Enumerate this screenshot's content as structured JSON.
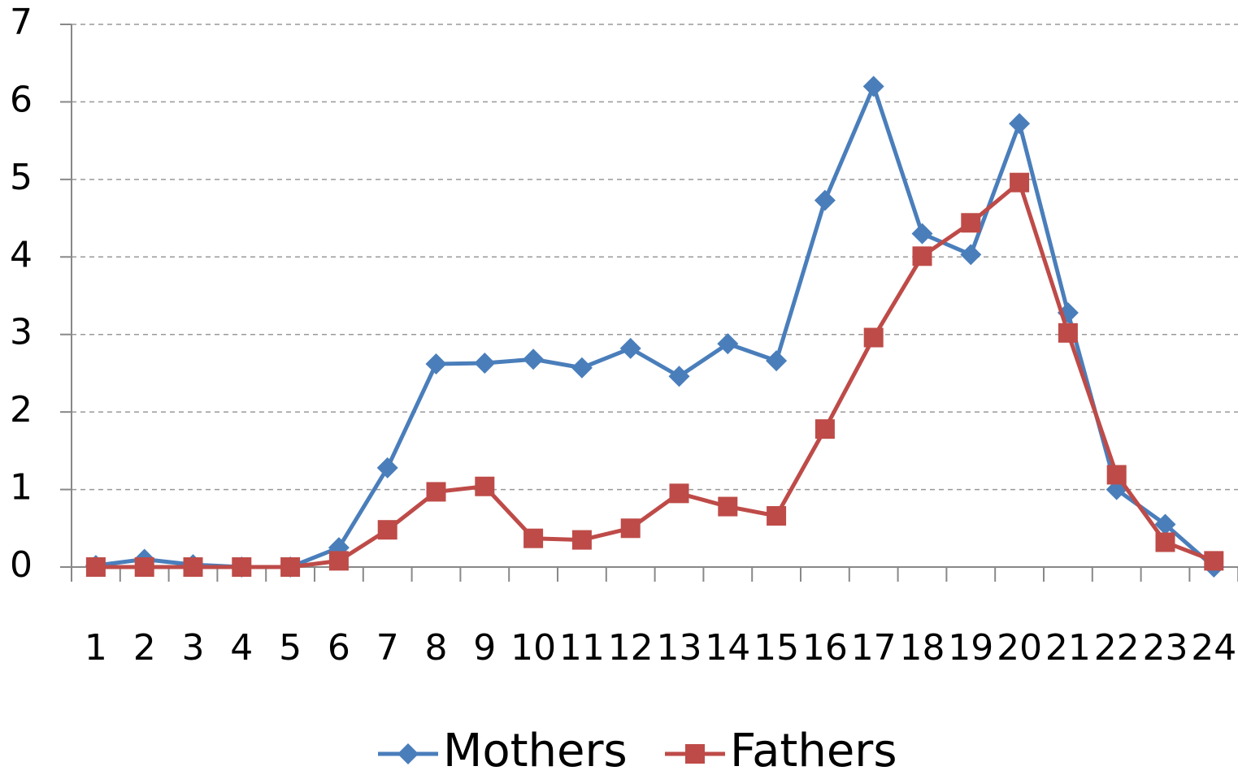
{
  "chart_data": {
    "type": "line",
    "categories": [
      "1",
      "2",
      "3",
      "4",
      "5",
      "6",
      "7",
      "8",
      "9",
      "10",
      "11",
      "12",
      "13",
      "14",
      "15",
      "16",
      "17",
      "18",
      "19",
      "20",
      "21",
      "22",
      "23",
      "24"
    ],
    "series": [
      {
        "name": "Mothers",
        "color": "#4a7ebb",
        "marker": "diamond",
        "values": [
          0.02,
          0.1,
          0.03,
          0,
          0,
          0.25,
          1.28,
          2.62,
          2.63,
          2.68,
          2.57,
          2.82,
          2.46,
          2.88,
          2.66,
          4.73,
          6.2,
          4.3,
          4.03,
          5.72,
          3.28,
          1.0,
          0.55,
          0.0
        ]
      },
      {
        "name": "Fathers",
        "color": "#be4b48",
        "marker": "square",
        "values": [
          0,
          0,
          0,
          0,
          0,
          0.08,
          0.48,
          0.97,
          1.04,
          0.37,
          0.35,
          0.5,
          0.95,
          0.78,
          0.66,
          1.78,
          2.96,
          4.01,
          4.44,
          4.96,
          3.02,
          1.19,
          0.32,
          0.08
        ]
      }
    ],
    "ylim": [
      0,
      7
    ],
    "yticks": [
      0,
      1,
      2,
      3,
      4,
      5,
      6,
      7
    ],
    "grid": true,
    "legend": "bottom"
  }
}
